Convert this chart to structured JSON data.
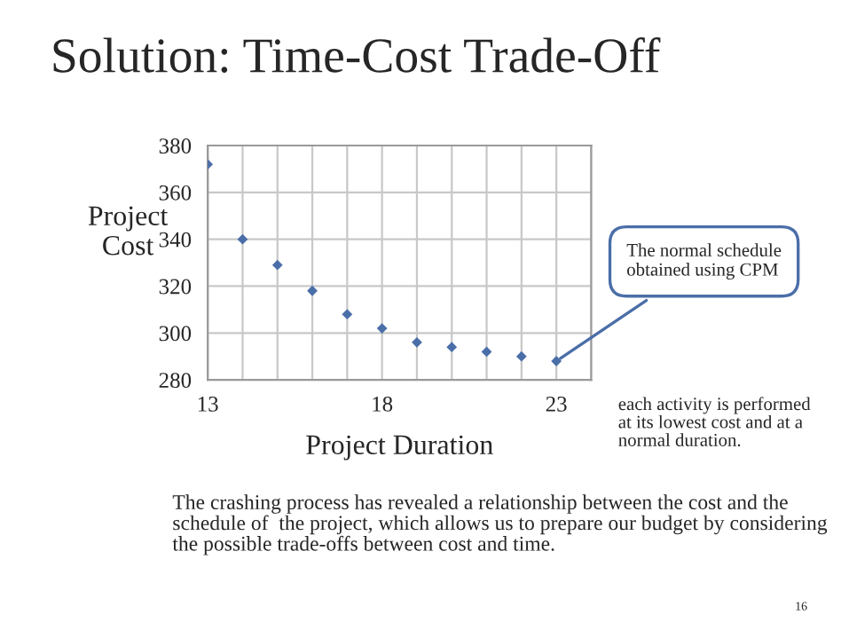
{
  "chart_data": {
    "type": "scatter",
    "title": "Solution: Time-Cost Trade-Off",
    "xlabel": "Project Duration",
    "ylabel": "Project\nCost",
    "x": [
      13,
      14,
      15,
      16,
      17,
      18,
      19,
      20,
      21,
      22,
      23
    ],
    "series": [
      {
        "color": "#4a6ea8",
        "values": [
          372,
          340,
          329,
          318,
          308,
          302,
          296,
          294,
          292,
          290,
          288
        ]
      }
    ],
    "xlim": [
      13,
      24
    ],
    "ylim": [
      280,
      380
    ],
    "xticks": [
      13,
      {
        "value": 14,
        "label": null
      },
      {
        "value": 15,
        "label": null
      },
      {
        "value": 16,
        "label": null
      },
      {
        "value": 17,
        "label": null
      },
      18,
      {
        "value": 19,
        "label": null
      },
      {
        "value": 20,
        "label": null
      },
      {
        "value": 21,
        "label": null
      },
      {
        "value": 22,
        "label": null
      },
      23,
      {
        "value": 24,
        "label": null
      }
    ],
    "yticks": [
      280,
      300,
      320,
      340,
      360,
      380
    ],
    "grid": true,
    "marker": "diamond",
    "legend": false,
    "annotations": [
      {
        "text": "The normal schedule\nobtained using CPM",
        "x": 23,
        "y": 288
      },
      "each activity is performed\nat its lowest cost and at a\nnormal duration.",
      "The crashing process has revealed a relationship between the cost and the\nschedule of  the project, which allows us to prepare our budget by considering\nthe possible trade-offs between cost and time.",
      "16"
    ]
  }
}
